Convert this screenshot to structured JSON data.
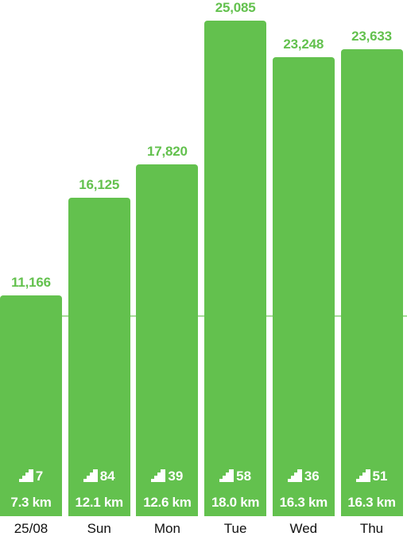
{
  "colors": {
    "bar": "#63c14e",
    "value_label": "#63c14e",
    "goal_line": "#a8dc9a",
    "text_on_bar": "#ffffff",
    "day_label": "#111111"
  },
  "chart_data": {
    "type": "bar",
    "title": "",
    "xlabel": "",
    "ylabel": "",
    "categories": [
      "25/08",
      "Sun",
      "Mon",
      "Tue",
      "Wed",
      "Thu"
    ],
    "values": [
      11166,
      16125,
      17820,
      25085,
      23248,
      23633
    ],
    "value_labels": [
      "11,166",
      "16,125",
      "17,820",
      "25,085",
      "23,248",
      "23,633"
    ],
    "floors": [
      "7",
      "84",
      "39",
      "58",
      "36",
      "51"
    ],
    "distances": [
      "7.3 km",
      "12.1 km",
      "12.6 km",
      "18.0 km",
      "16.3 km",
      "16.3 km"
    ],
    "goal_line_value": 10000,
    "ylim": [
      0,
      25085
    ],
    "grid": false,
    "legend": "none"
  }
}
